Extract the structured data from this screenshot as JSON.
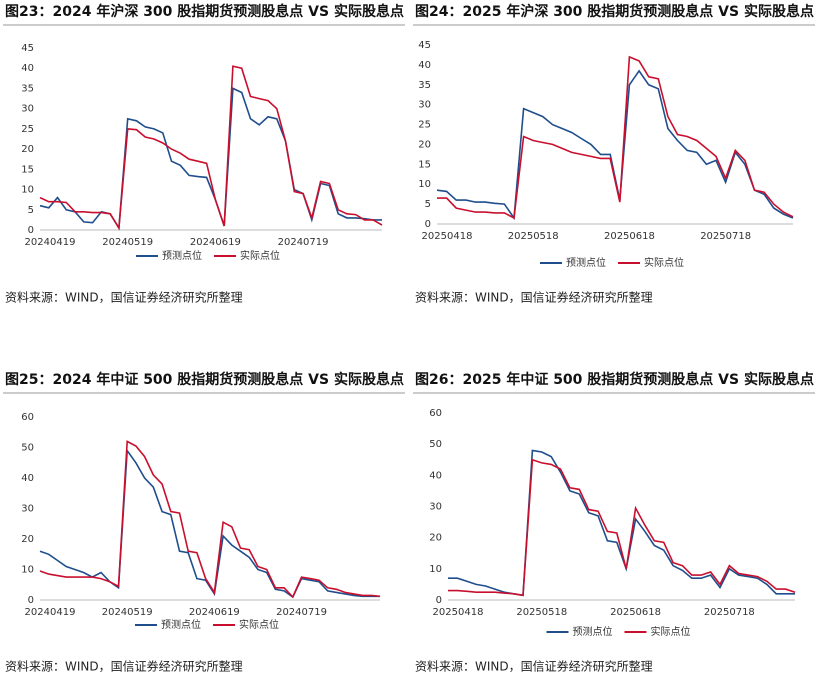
{
  "chart_data": [
    {
      "type": "line",
      "title": "图23：2024 年沪深 300 股指期货预测股息点 VS 实际股息点",
      "source": "资料来源：WIND，国信证券经济研究所整理",
      "categories": [
        "20240419",
        null,
        null,
        null,
        null,
        null,
        null,
        null,
        null,
        null,
        "20240519",
        null,
        null,
        null,
        null,
        null,
        null,
        null,
        null,
        null,
        "20240619",
        null,
        null,
        null,
        null,
        null,
        null,
        null,
        null,
        null,
        "20240719",
        null,
        null,
        null,
        null,
        null,
        null,
        null,
        null,
        null
      ],
      "ylim": [
        0,
        45
      ],
      "yticks": [
        0,
        5,
        10,
        15,
        20,
        25,
        30,
        35,
        40,
        45
      ],
      "series": [
        {
          "name": "预测点位",
          "color": "#1f4e8c",
          "values": [
            6,
            5.5,
            8,
            5,
            4.5,
            2,
            1.8,
            4.5,
            4,
            0.5,
            27.5,
            27,
            25.5,
            25,
            24,
            17,
            16,
            13.5,
            13.2,
            13,
            7.5,
            1,
            35,
            34,
            27.5,
            26,
            28,
            27.5,
            22,
            10,
            9,
            2.5,
            11.5,
            11,
            4,
            3,
            3,
            2.8,
            2.5,
            2.5
          ]
        },
        {
          "name": "实际点位",
          "color": "#c8102e",
          "values": [
            8,
            7,
            7,
            6.8,
            4.5,
            4.5,
            4.3,
            4.3,
            4,
            0.5,
            25,
            24.8,
            23,
            22.5,
            21.5,
            20,
            19,
            17.5,
            17,
            16.5,
            7.5,
            1,
            40.5,
            40,
            33,
            32.5,
            32,
            30,
            22,
            9.5,
            9,
            3,
            12,
            11.5,
            5,
            4,
            3.8,
            2.5,
            2.5,
            1.2
          ]
        }
      ]
    },
    {
      "type": "line",
      "title": "图24：2025 年沪深 300 股指期货预测股息点 VS 实际股息点",
      "source": "资料来源：WIND，国信证券经济研究所整理",
      "categories": [
        "20250418",
        null,
        null,
        null,
        null,
        null,
        null,
        null,
        null,
        null,
        "20250518",
        null,
        null,
        null,
        null,
        null,
        null,
        null,
        null,
        null,
        "20250618",
        null,
        null,
        null,
        null,
        null,
        null,
        null,
        null,
        null,
        "20250718",
        null,
        null,
        null,
        null,
        null,
        null,
        null
      ],
      "ylim": [
        0,
        45
      ],
      "yticks": [
        0,
        5,
        10,
        15,
        20,
        25,
        30,
        35,
        40,
        45
      ],
      "series": [
        {
          "name": "预测点位",
          "color": "#1f4e8c",
          "values": [
            8.5,
            8.2,
            6,
            6,
            5.5,
            5.5,
            5.2,
            5,
            1.5,
            29,
            28,
            27,
            25,
            24,
            23,
            21.5,
            20,
            17.5,
            17.5,
            6,
            35,
            38.5,
            35,
            34,
            24,
            21,
            18.5,
            18,
            15,
            16,
            10.5,
            18,
            15,
            8.5,
            7.5,
            4,
            2.5,
            1.5
          ]
        },
        {
          "name": "实际点位",
          "color": "#c8102e",
          "values": [
            6.5,
            6.5,
            4,
            3.5,
            3,
            3,
            2.8,
            2.8,
            1.5,
            22,
            21,
            20.5,
            20,
            19,
            18,
            17.5,
            17,
            16.5,
            16.5,
            5.5,
            42,
            41,
            37,
            36.5,
            27,
            22.5,
            22,
            21,
            19,
            17,
            11.5,
            18.5,
            16,
            8.5,
            8,
            5,
            3,
            1.8
          ]
        }
      ]
    },
    {
      "type": "line",
      "title": "图25：2024 年中证 500 股指期货预测股息点 VS 实际股息点",
      "source": "资料来源：WIND，国信证券经济研究所整理",
      "categories": [
        "20240419",
        null,
        null,
        null,
        null,
        null,
        null,
        null,
        null,
        null,
        "20240519",
        null,
        null,
        null,
        null,
        null,
        null,
        null,
        null,
        null,
        "20240619",
        null,
        null,
        null,
        null,
        null,
        null,
        null,
        null,
        null,
        "20240719",
        null,
        null,
        null,
        null,
        null,
        null,
        null,
        null,
        null
      ],
      "ylim": [
        0,
        60
      ],
      "yticks": [
        0,
        10,
        20,
        30,
        40,
        50,
        60
      ],
      "series": [
        {
          "name": "预测点位",
          "color": "#1f4e8c",
          "values": [
            16,
            15,
            13,
            11,
            10,
            9,
            7.5,
            9,
            6,
            4,
            49,
            45,
            40,
            37,
            29,
            28,
            16,
            15.5,
            7,
            6.5,
            2,
            21,
            18,
            16,
            14,
            10,
            9,
            3.5,
            3,
            1,
            7,
            6.5,
            6,
            3,
            2.5,
            2,
            1.5,
            1.2,
            1.2,
            1.2
          ]
        },
        {
          "name": "实际点位",
          "color": "#c8102e",
          "values": [
            9.5,
            8.5,
            8,
            7.5,
            7.5,
            7.5,
            7.5,
            7,
            6,
            4.5,
            52,
            50.5,
            47,
            41,
            38,
            29,
            28.5,
            16,
            15.5,
            7,
            2.5,
            25.5,
            24,
            17,
            16.5,
            11,
            10,
            4,
            4,
            1,
            7.5,
            7,
            6.5,
            4,
            3.5,
            2.5,
            2,
            1.5,
            1.5,
            1.2
          ]
        }
      ]
    },
    {
      "type": "line",
      "title": "图26：2025 年中证 500 股指期货预测股息点 VS 实际股息点",
      "source": "资料来源：WIND，国信证券经济研究所整理",
      "categories": [
        "20250418",
        null,
        null,
        null,
        null,
        null,
        null,
        null,
        null,
        null,
        "20250518",
        null,
        null,
        null,
        null,
        null,
        null,
        null,
        null,
        null,
        "20250618",
        null,
        null,
        null,
        null,
        null,
        null,
        null,
        null,
        null,
        "20250718",
        null,
        null,
        null,
        null,
        null,
        null,
        null
      ],
      "ylim": [
        0,
        60
      ],
      "yticks": [
        0,
        10,
        20,
        30,
        40,
        50,
        60
      ],
      "series": [
        {
          "name": "预测点位",
          "color": "#1f4e8c",
          "values": [
            7,
            7,
            6,
            5,
            4.5,
            3.5,
            2.5,
            2,
            1.5,
            48,
            47.5,
            46,
            41,
            35,
            34,
            28,
            27,
            19,
            18.5,
            10,
            26,
            22,
            17.5,
            16,
            11,
            9.5,
            7,
            7,
            8,
            4,
            10,
            8,
            7.5,
            7,
            5,
            2,
            2,
            2
          ]
        },
        {
          "name": "实际点位",
          "color": "#c8102e",
          "values": [
            3,
            3,
            2.8,
            2.5,
            2.5,
            2.5,
            2.2,
            2,
            1.5,
            45,
            44,
            43.5,
            42,
            36,
            35.5,
            29,
            28.5,
            22,
            21.5,
            10,
            29.5,
            24,
            19,
            18.5,
            12,
            11,
            8,
            8,
            9,
            5,
            11,
            8.5,
            8,
            7.5,
            6,
            3.5,
            3.5,
            2.5
          ]
        }
      ]
    }
  ]
}
